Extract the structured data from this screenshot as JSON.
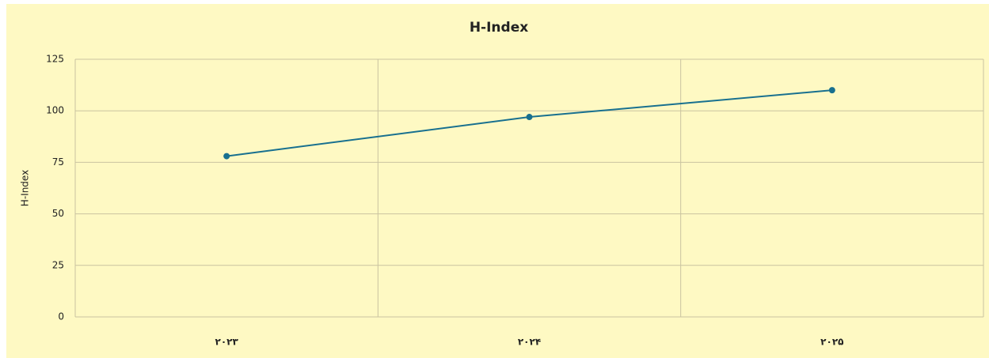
{
  "chart_data": {
    "type": "line",
    "title": "H-Index",
    "y_label": "H-Index",
    "categories": [
      "۲۰۲۳",
      "۲۰۲۴",
      "۲۰۲۵"
    ],
    "series": [
      {
        "name": "H-Index",
        "color": "#18708f",
        "values": [
          78,
          97,
          110
        ]
      }
    ],
    "ylim": [
      0,
      125
    ],
    "yticks": [
      0,
      25,
      50,
      75,
      100,
      125
    ],
    "grid": true
  }
}
